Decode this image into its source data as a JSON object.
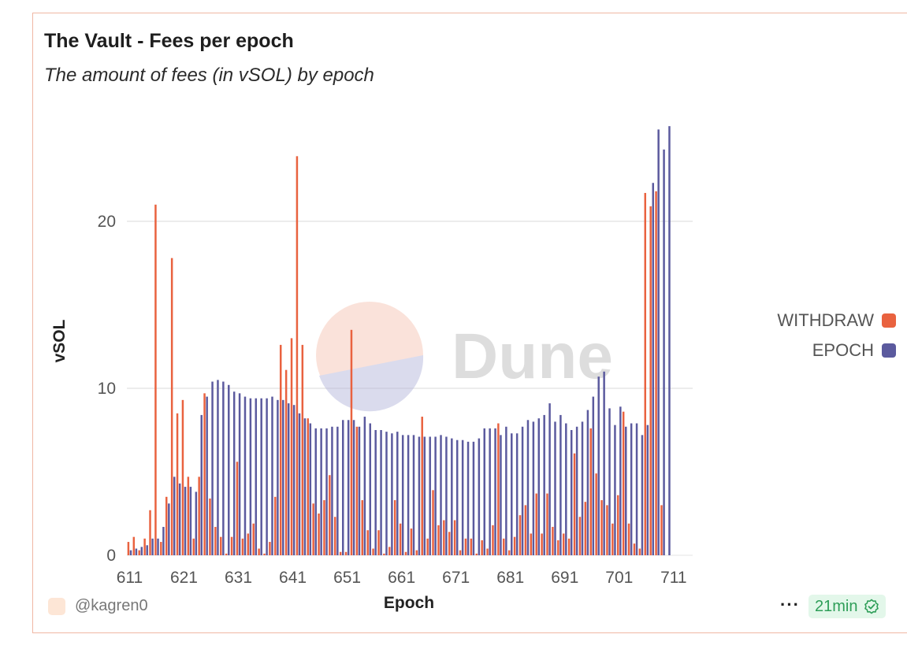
{
  "card": {
    "title": "The Vault - Fees per epoch",
    "subtitle": "The amount of fees (in vSOL) by epoch"
  },
  "legend": {
    "items": [
      {
        "label": "WITHDRAW",
        "color": "#e9623f"
      },
      {
        "label": "EPOCH",
        "color": "#5b5a9e"
      }
    ]
  },
  "footer": {
    "author": "@kagren0",
    "refresh_age": "21min",
    "more_label": "···"
  },
  "watermark": {
    "text": "Dune",
    "circle_top_color": "#f7c7b6",
    "circle_bottom_color": "#b7b8dc"
  },
  "chart_data": {
    "type": "bar",
    "title": "The Vault - Fees per epoch",
    "xlabel": "Epoch",
    "ylabel": "vSOL",
    "ylim": [
      0,
      25.7
    ],
    "yticks": [
      0,
      10,
      20
    ],
    "xticks": [
      611,
      621,
      631,
      641,
      651,
      661,
      671,
      681,
      691,
      701,
      711
    ],
    "grid": true,
    "legend_position": "right",
    "x": [
      611,
      612,
      613,
      614,
      615,
      616,
      617,
      618,
      619,
      620,
      621,
      622,
      623,
      624,
      625,
      626,
      627,
      628,
      629,
      630,
      631,
      632,
      633,
      634,
      635,
      636,
      637,
      638,
      639,
      640,
      641,
      642,
      643,
      644,
      645,
      646,
      647,
      648,
      649,
      650,
      651,
      652,
      653,
      654,
      655,
      656,
      657,
      658,
      659,
      660,
      661,
      662,
      663,
      664,
      665,
      666,
      667,
      668,
      669,
      670,
      671,
      672,
      673,
      674,
      675,
      676,
      677,
      678,
      679,
      680,
      681,
      682,
      683,
      684,
      685,
      686,
      687,
      688,
      689,
      690,
      691,
      692,
      693,
      694,
      695,
      696,
      697,
      698,
      699,
      700,
      701,
      702,
      703,
      704,
      705,
      706,
      707,
      708,
      709,
      710,
      711,
      712,
      713,
      714
    ],
    "series": [
      {
        "name": "WITHDRAW",
        "color": "#e9623f",
        "values": [
          0.8,
          1.1,
          0.3,
          1.0,
          2.7,
          21.0,
          0.8,
          3.5,
          17.8,
          8.5,
          9.3,
          4.7,
          1.0,
          4.7,
          9.7,
          3.4,
          1.7,
          1.1,
          0.1,
          1.1,
          5.6,
          1.0,
          1.3,
          1.9,
          0.4,
          0.1,
          0.8,
          3.5,
          12.6,
          11.1,
          13.0,
          23.9,
          12.6,
          8.2,
          3.1,
          2.5,
          3.3,
          4.8,
          2.3,
          0.2,
          0.2,
          13.5,
          7.7,
          3.3,
          1.5,
          0.4,
          1.5,
          0.1,
          0.5,
          3.3,
          1.9,
          0.2,
          1.6,
          0.3,
          8.3,
          1.0,
          3.9,
          1.8,
          2.1,
          1.4,
          2.1,
          0.3,
          1.0,
          1.0,
          0.1,
          0.9,
          0.4,
          1.8,
          7.9,
          1.0,
          0.3,
          1.1,
          2.4,
          3.0,
          1.3,
          3.7,
          1.3,
          3.7,
          1.7,
          0.9,
          1.3,
          1.0,
          6.1,
          2.3,
          3.2,
          7.6,
          4.9,
          3.3,
          3.0,
          1.9,
          3.6,
          8.6,
          1.9,
          0.7,
          0.4,
          21.7,
          20.9,
          21.8,
          3.0,
          0.0,
          0.0,
          0.0,
          0.0,
          0.0
        ]
      },
      {
        "name": "EPOCH",
        "color": "#5b5a9e",
        "values": [
          0.3,
          0.4,
          0.5,
          0.6,
          1.0,
          1.0,
          1.7,
          3.1,
          4.7,
          4.3,
          4.1,
          4.1,
          3.8,
          8.4,
          9.5,
          10.4,
          10.5,
          10.4,
          10.2,
          9.8,
          9.7,
          9.5,
          9.4,
          9.4,
          9.4,
          9.4,
          9.5,
          9.3,
          9.3,
          9.1,
          9.0,
          8.5,
          8.2,
          7.9,
          7.6,
          7.6,
          7.6,
          7.7,
          7.7,
          8.1,
          8.1,
          8.1,
          7.7,
          8.3,
          7.9,
          7.5,
          7.5,
          7.4,
          7.3,
          7.4,
          7.2,
          7.2,
          7.2,
          7.1,
          7.1,
          7.1,
          7.1,
          7.2,
          7.1,
          7.0,
          6.9,
          6.9,
          6.8,
          6.8,
          7.0,
          7.6,
          7.6,
          7.6,
          7.2,
          7.7,
          7.3,
          7.3,
          7.7,
          8.1,
          8.0,
          8.2,
          8.4,
          9.1,
          8.0,
          8.4,
          7.9,
          7.5,
          7.7,
          8.0,
          8.7,
          9.5,
          10.7,
          11.0,
          8.8,
          7.8,
          8.9,
          7.7,
          7.9,
          7.9,
          7.2,
          7.8,
          22.3,
          25.5,
          24.3,
          25.7,
          0.0,
          0.0,
          0.0,
          0.0
        ]
      }
    ]
  }
}
